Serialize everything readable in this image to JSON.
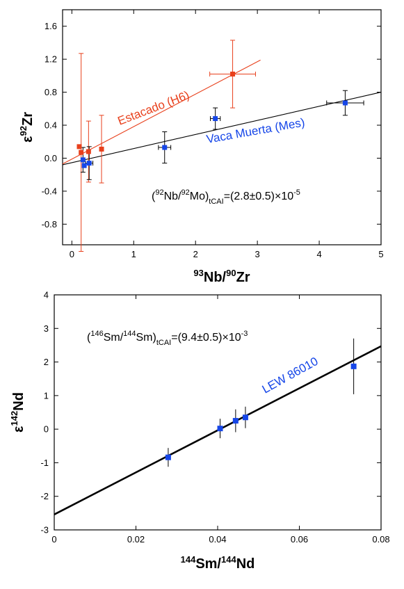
{
  "chart_data": [
    {
      "type": "scatter",
      "xlabel": {
        "sup1": "93",
        "t1": "Nb/",
        "sup2": "90",
        "t2": "Zr"
      },
      "ylabel": {
        "pre": "ε",
        "sup": "92",
        "post": "Zr"
      },
      "xlim": [
        -0.15,
        5
      ],
      "ylim": [
        -1.05,
        1.8
      ],
      "xticks": [
        0,
        1,
        2,
        3,
        4,
        5
      ],
      "yticks": [
        -0.8,
        -0.4,
        0.0,
        0.4,
        0.8,
        1.2,
        1.6
      ],
      "ytick_labels": [
        "-0.8",
        "-0.4",
        "0.0",
        "0.4",
        "0.8",
        "1.2",
        "1.6"
      ],
      "annotation": {
        "open": "(",
        "sup1": "92",
        "t1": "Nb/",
        "sup2": "92",
        "t2": "Mo)",
        "sub": "tCAI",
        "t3": "=(2.8±0.5)×10",
        "sup3": "-5"
      },
      "series": [
        {
          "name": "Estacado (H6)",
          "color": "#e8401c",
          "points": [
            {
              "x": 0.12,
              "y": 0.14,
              "yerr": 0.0,
              "xerr": 0.0
            },
            {
              "x": 0.15,
              "y": 0.07,
              "yerr": 1.2,
              "xerr": 0.0
            },
            {
              "x": 0.27,
              "y": 0.08,
              "yerr": 0.37,
              "xerr": 0.0
            },
            {
              "x": 0.48,
              "y": 0.11,
              "yerr": 0.41,
              "xerr": 0.0
            },
            {
              "x": 2.6,
              "y": 1.02,
              "yerr": 0.41,
              "xerr": 0.37
            }
          ],
          "fit": {
            "x": [
              -0.15,
              3.05
            ],
            "y": [
              -0.07,
              1.19
            ]
          }
        },
        {
          "name": "Vaca Muerta (Mes)",
          "color": "#1646e8",
          "points": [
            {
              "x": 0.18,
              "y": -0.02,
              "yerr": 0.15,
              "xerr": 0.0
            },
            {
              "x": 0.2,
              "y": -0.09,
              "yerr": 0.0,
              "xerr": 0.0
            },
            {
              "x": 0.28,
              "y": -0.06,
              "yerr": 0.2,
              "xerr": 0.06
            },
            {
              "x": 1.5,
              "y": 0.13,
              "yerr": 0.19,
              "xerr": 0.1
            },
            {
              "x": 2.32,
              "y": 0.48,
              "yerr": 0.13,
              "xerr": 0.08
            },
            {
              "x": 4.42,
              "y": 0.67,
              "yerr": 0.15,
              "xerr": 0.3
            }
          ],
          "fit": {
            "x": [
              -0.15,
              5
            ],
            "y": [
              -0.08,
              0.8
            ]
          }
        }
      ]
    },
    {
      "type": "scatter",
      "xlabel": {
        "sup1": "144",
        "t1": "Sm/",
        "sup2": "144",
        "t2": "Nd"
      },
      "ylabel": {
        "pre": "ε",
        "sup": "142",
        "post": "Nd"
      },
      "xlim": [
        0,
        0.08
      ],
      "ylim": [
        -3,
        4
      ],
      "xticks": [
        0,
        0.02,
        0.04,
        0.06,
        0.08
      ],
      "xtick_labels": [
        "0",
        "0.02",
        "0.04",
        "0.06",
        "0.08"
      ],
      "yticks": [
        -3,
        -2,
        -1,
        0,
        1,
        2,
        3,
        4
      ],
      "ytick_labels": [
        "-3",
        "-2",
        "-1",
        "0",
        "1",
        "2",
        "3",
        "4"
      ],
      "annotation": {
        "open": "(",
        "sup1": "146",
        "t1": "Sm/",
        "sup2": "144",
        "t2": "Sm)",
        "sub": "tCAI",
        "t3": "=(9.4±0.5)×10",
        "sup3": "-3"
      },
      "series": [
        {
          "name": "LEW 86010",
          "color": "#1646e8",
          "points": [
            {
              "x": 0.0279,
              "y": -0.84,
              "yerr": 0.28
            },
            {
              "x": 0.0406,
              "y": 0.02,
              "yerr": 0.29
            },
            {
              "x": 0.0444,
              "y": 0.25,
              "yerr": 0.34
            },
            {
              "x": 0.0468,
              "y": 0.35,
              "yerr": 0.32
            },
            {
              "x": 0.0733,
              "y": 1.87,
              "yerr": 0.83
            }
          ],
          "fit": {
            "x": [
              0,
              0.08
            ],
            "y": [
              -2.54,
              2.47
            ]
          }
        }
      ]
    }
  ]
}
